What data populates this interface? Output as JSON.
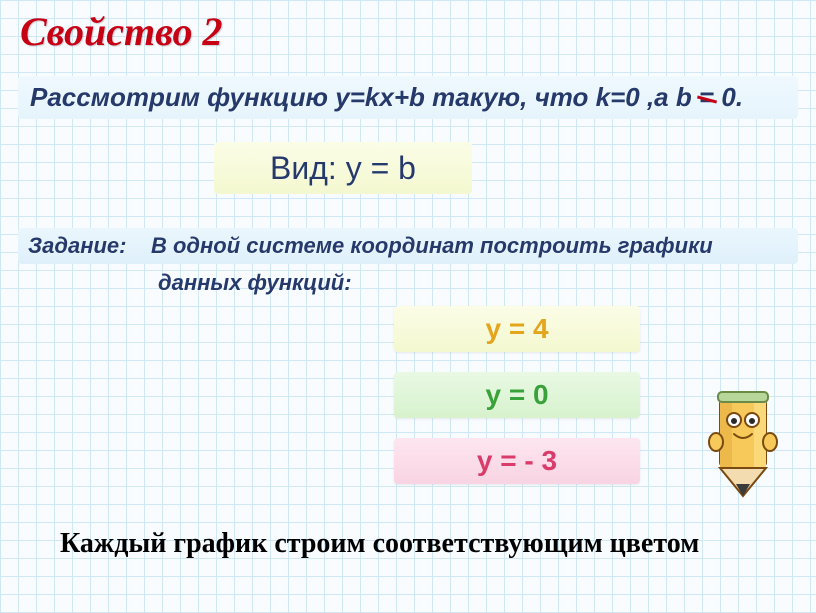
{
  "title": "Свойство 2",
  "intro_html": "Рассмотрим функцию y=kx+b такую, что k=0 ,а b <span class='neq'>=</span> 0.",
  "form_label": "Вид:   y = b",
  "task_label": "Задание:",
  "task_text": "В одной системе координат построить графики",
  "task_text2": "данных  функций:",
  "equations": [
    {
      "text": "y = 4",
      "bg": "#f4f8cf",
      "color": "#e4a51c"
    },
    {
      "text": "y = 0",
      "bg": "#d7f2cd",
      "color": "#3aa23a"
    },
    {
      "text": "y = - 3",
      "bg": "#f9d4e3",
      "color": "#d93b6a"
    }
  ],
  "footer": "Каждый график строим соответствующим цветом",
  "colors": {
    "title": "#c80014",
    "text_blue": "#253a6b",
    "grid": "#d0e8f5",
    "bg": "#f8fcff"
  },
  "fonts": {
    "title_size": 40,
    "intro_size": 26,
    "form_size": 32,
    "task_size": 22,
    "eq_size": 28,
    "footer_size": 28
  }
}
